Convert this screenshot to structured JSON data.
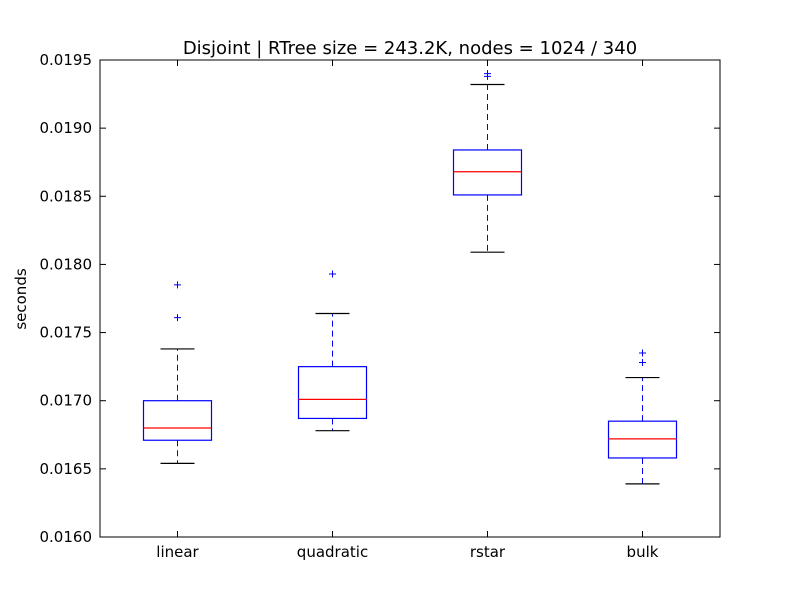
{
  "chart_data": {
    "type": "box",
    "title": "Disjoint | RTree size = 243.2K, nodes = 1024 / 340",
    "xlabel": "",
    "ylabel": "seconds",
    "ylim": [
      0.016,
      0.0195
    ],
    "yticks": [
      "0.0160",
      "0.0165",
      "0.0170",
      "0.0175",
      "0.0180",
      "0.0185",
      "0.0190",
      "0.0195"
    ],
    "categories": [
      "linear",
      "quadratic",
      "rstar",
      "bulk"
    ],
    "boxes": [
      {
        "name": "linear",
        "whisker_low": 0.01654,
        "q1": 0.01671,
        "median": 0.0168,
        "q3": 0.017,
        "whisker_high": 0.01738,
        "outliers": [
          0.01761,
          0.01785
        ]
      },
      {
        "name": "quadratic",
        "whisker_low": 0.01678,
        "q1": 0.01687,
        "median": 0.01701,
        "q3": 0.01725,
        "whisker_high": 0.01764,
        "outliers": [
          0.01793
        ]
      },
      {
        "name": "rstar",
        "whisker_low": 0.01809,
        "q1": 0.01851,
        "median": 0.01868,
        "q3": 0.01884,
        "whisker_high": 0.01932,
        "outliers": [
          0.01938,
          0.0194
        ]
      },
      {
        "name": "bulk",
        "whisker_low": 0.01639,
        "q1": 0.01658,
        "median": 0.01672,
        "q3": 0.01685,
        "whisker_high": 0.01717,
        "outliers": [
          0.01728,
          0.01735
        ]
      }
    ],
    "colors": {
      "box": "#0000ff",
      "median": "#ff0000",
      "whisker_cap": "#000000",
      "whisker_line": "#0000ff",
      "outlier": "#0000ff"
    },
    "grid": false,
    "legend": "none"
  }
}
